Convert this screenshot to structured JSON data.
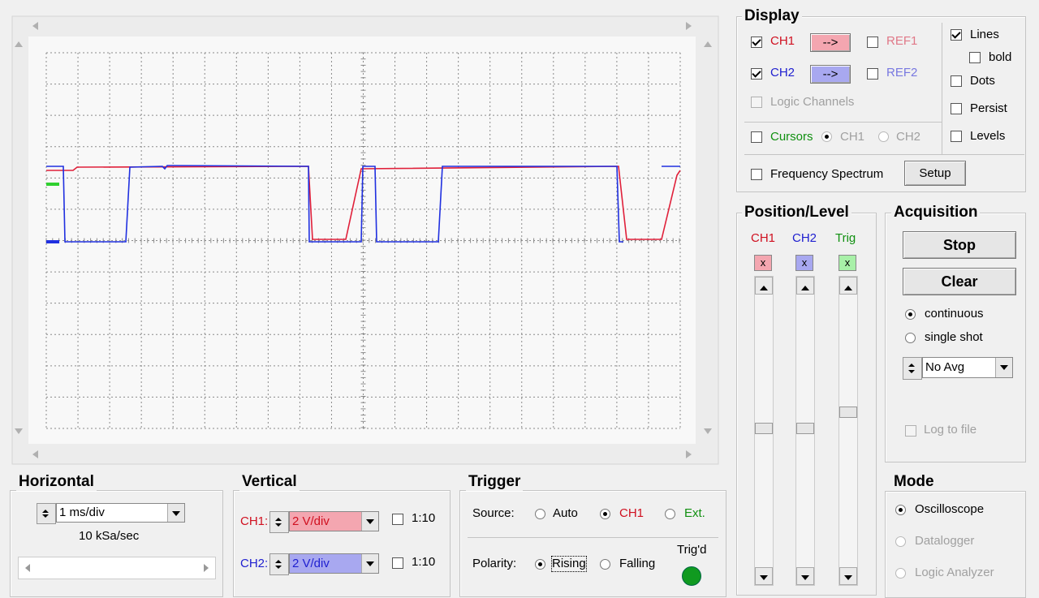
{
  "display": {
    "title": "Display",
    "ch1": "CH1",
    "ch1_button": "-->",
    "ref1": "REF1",
    "ch2": "CH2",
    "ch2_button": "-->",
    "ref2": "REF2",
    "logic_channels": "Logic Channels",
    "cursors": "Cursors",
    "cursor_ch1": "CH1",
    "cursor_ch2": "CH2",
    "lines": "Lines",
    "bold": "bold",
    "dots": "Dots",
    "persist": "Persist",
    "levels": "Levels",
    "frequency_spectrum": "Frequency Spectrum",
    "setup": "Setup"
  },
  "position_level": {
    "title": "Position/Level",
    "ch1": "CH1",
    "ch2": "CH2",
    "trig": "Trig",
    "ch1_marker": "x",
    "ch2_marker": "x",
    "trig_marker": "x"
  },
  "acquisition": {
    "title": "Acquisition",
    "stop": "Stop",
    "clear": "Clear",
    "continuous": "continuous",
    "single_shot": "single shot",
    "averaging": "No Avg",
    "log_to_file": "Log to file"
  },
  "horizontal": {
    "title": "Horizontal",
    "timebase": "1 ms/div",
    "sample_rate": "10 kSa/sec"
  },
  "vertical": {
    "title": "Vertical",
    "ch1_label": "CH1:",
    "ch1_scale": "2 V/div",
    "ch1_probe": "1:10",
    "ch2_label": "CH2:",
    "ch2_scale": "2 V/div",
    "ch2_probe": "1:10"
  },
  "trigger": {
    "title": "Trigger",
    "source_label": "Source:",
    "auto": "Auto",
    "ch1": "CH1",
    "ext": "Ext.",
    "polarity_label": "Polarity:",
    "rising": "Rising",
    "falling": "Falling",
    "triggered": "Trig'd"
  },
  "mode": {
    "title": "Mode",
    "oscilloscope": "Oscilloscope",
    "datalogger": "Datalogger",
    "logic_analyzer": "Logic Analyzer"
  }
}
